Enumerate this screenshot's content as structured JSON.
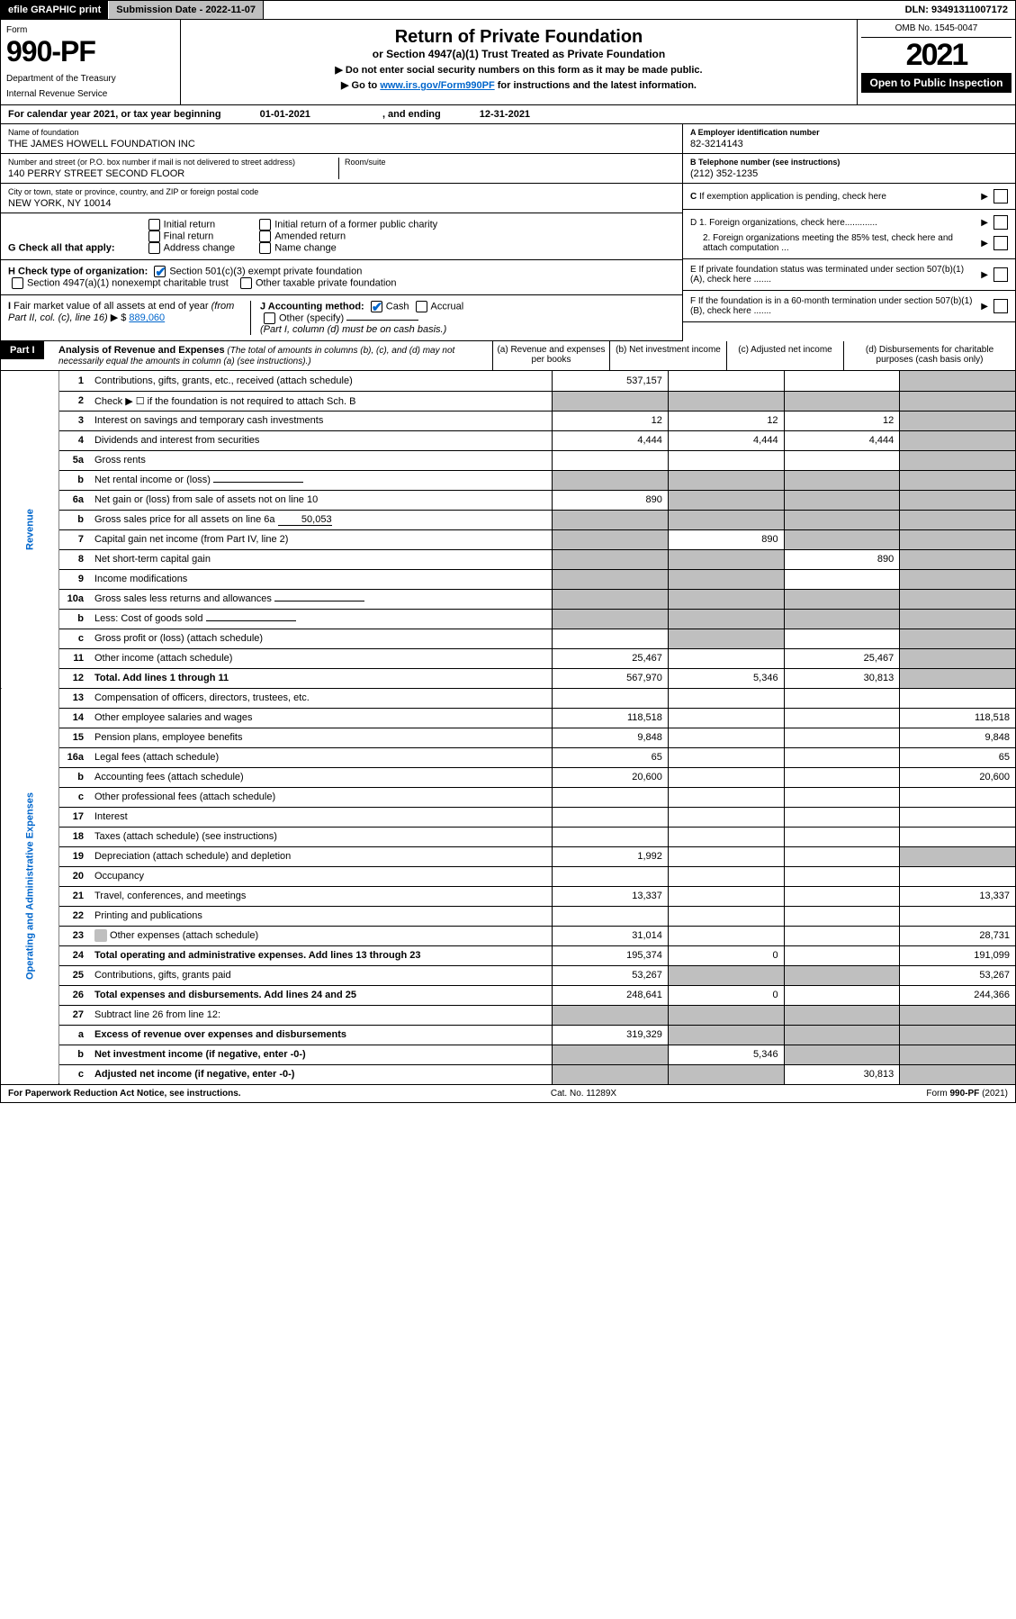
{
  "topbar": {
    "efile": "efile GRAPHIC print",
    "submission_label": "Submission Date - 2022-11-07",
    "dln": "DLN: 93491311007172"
  },
  "header": {
    "form_label": "Form",
    "form_number": "990-PF",
    "dept": "Department of the Treasury",
    "irs": "Internal Revenue Service",
    "title": "Return of Private Foundation",
    "subtitle": "or Section 4947(a)(1) Trust Treated as Private Foundation",
    "instr1": "▶ Do not enter social security numbers on this form as it may be made public.",
    "instr2_a": "▶ Go to ",
    "instr2_link": "www.irs.gov/Form990PF",
    "instr2_b": " for instructions and the latest information.",
    "omb": "OMB No. 1545-0047",
    "tax_year": "2021",
    "open_public": "Open to Public Inspection"
  },
  "calendar": {
    "prefix": "For calendar year 2021, or tax year beginning ",
    "begin": "01-01-2021",
    "mid": ", and ending ",
    "end": "12-31-2021"
  },
  "foundation": {
    "name_label": "Name of foundation",
    "name": "THE JAMES HOWELL FOUNDATION INC",
    "addr_label": "Number and street (or P.O. box number if mail is not delivered to street address)",
    "addr": "140 PERRY STREET SECOND FLOOR",
    "room_label": "Room/suite",
    "city_label": "City or town, state or province, country, and ZIP or foreign postal code",
    "city": "NEW YORK, NY  10014"
  },
  "idblock": {
    "a_label": "A Employer identification number",
    "a_value": "82-3214143",
    "b_label": "B Telephone number (see instructions)",
    "b_value": "(212) 352-1235",
    "c_label": "C If exemption application is pending, check here",
    "d1_label": "D 1. Foreign organizations, check here.............",
    "d2_label": "2. Foreign organizations meeting the 85% test, check here and attach computation ...",
    "e_label": "E If private foundation status was terminated under section 507(b)(1)(A), check here .......",
    "f_label": "F If the foundation is in a 60-month termination under section 507(b)(1)(B), check here ......."
  },
  "g": {
    "label": "G Check all that apply:",
    "opts": [
      "Initial return",
      "Final return",
      "Address change",
      "Initial return of a former public charity",
      "Amended return",
      "Name change"
    ]
  },
  "h": {
    "label": "H Check type of organization:",
    "opt1": "Section 501(c)(3) exempt private foundation",
    "opt2": "Section 4947(a)(1) nonexempt charitable trust",
    "opt3": "Other taxable private foundation"
  },
  "i": {
    "label": "I Fair market value of all assets at end of year (from Part II, col. (c), line 16) ▶ $ ",
    "value": "889,060"
  },
  "j": {
    "label": "J Accounting method:",
    "cash": "Cash",
    "accrual": "Accrual",
    "other": "Other (specify)",
    "note": "(Part I, column (d) must be on cash basis.)"
  },
  "part1": {
    "header": "Part I",
    "title": "Analysis of Revenue and Expenses",
    "title_note": " (The total of amounts in columns (b), (c), and (d) may not necessarily equal the amounts in column (a) (see instructions).)",
    "col_a": "(a) Revenue and expenses per books",
    "col_b": "(b) Net investment income",
    "col_c": "(c) Adjusted net income",
    "col_d": "(d) Disbursements for charitable purposes (cash basis only)"
  },
  "side_labels": {
    "revenue": "Revenue",
    "expenses": "Operating and Administrative Expenses"
  },
  "rows": [
    {
      "n": "1",
      "desc": "Contributions, gifts, grants, etc., received (attach schedule)",
      "a": "537,157",
      "b": "",
      "c": "",
      "d": "",
      "d_shaded": true
    },
    {
      "n": "2",
      "desc": "Check ▶ ☐ if the foundation is not required to attach Sch. B",
      "a": "",
      "b": "",
      "c": "",
      "d": "",
      "all_shaded": true,
      "bold_not": true
    },
    {
      "n": "3",
      "desc": "Interest on savings and temporary cash investments",
      "a": "12",
      "b": "12",
      "c": "12",
      "d": "",
      "d_shaded": true
    },
    {
      "n": "4",
      "desc": "Dividends and interest from securities",
      "a": "4,444",
      "b": "4,444",
      "c": "4,444",
      "d": "",
      "d_shaded": true
    },
    {
      "n": "5a",
      "desc": "Gross rents",
      "a": "",
      "b": "",
      "c": "",
      "d": "",
      "d_shaded": true
    },
    {
      "n": "b",
      "desc": "Net rental income or (loss)",
      "inline_box": true,
      "a": "",
      "b": "",
      "c": "",
      "d": "",
      "abcd_shaded": true
    },
    {
      "n": "6a",
      "desc": "Net gain or (loss) from sale of assets not on line 10",
      "a": "890",
      "b": "",
      "c": "",
      "d": "",
      "bcd_shaded": true
    },
    {
      "n": "b",
      "desc": "Gross sales price for all assets on line 6a",
      "inline_val": "50,053",
      "a": "",
      "b": "",
      "c": "",
      "d": "",
      "abcd_shaded": true
    },
    {
      "n": "7",
      "desc": "Capital gain net income (from Part IV, line 2)",
      "a": "",
      "b": "890",
      "c": "",
      "d": "",
      "a_shaded": true,
      "cd_shaded": true
    },
    {
      "n": "8",
      "desc": "Net short-term capital gain",
      "a": "",
      "b": "",
      "c": "890",
      "d": "",
      "ab_shaded": true,
      "d_shaded": true
    },
    {
      "n": "9",
      "desc": "Income modifications",
      "a": "",
      "b": "",
      "c": "",
      "d": "",
      "ab_shaded": true,
      "d_shaded": true
    },
    {
      "n": "10a",
      "desc": "Gross sales less returns and allowances",
      "inline_box": true,
      "a": "",
      "b": "",
      "c": "",
      "d": "",
      "abcd_shaded": true
    },
    {
      "n": "b",
      "desc": "Less: Cost of goods sold",
      "inline_box": true,
      "a": "",
      "b": "",
      "c": "",
      "d": "",
      "abcd_shaded": true
    },
    {
      "n": "c",
      "desc": "Gross profit or (loss) (attach schedule)",
      "a": "",
      "b": "",
      "c": "",
      "d": "",
      "b_shaded": true,
      "d_shaded": true
    },
    {
      "n": "11",
      "desc": "Other income (attach schedule)",
      "a": "25,467",
      "b": "",
      "c": "25,467",
      "d": "",
      "d_shaded": true
    },
    {
      "n": "12",
      "desc": "Total. Add lines 1 through 11",
      "a": "567,970",
      "b": "5,346",
      "c": "30,813",
      "d": "",
      "d_shaded": true,
      "bold": true
    },
    {
      "n": "13",
      "desc": "Compensation of officers, directors, trustees, etc.",
      "a": "",
      "b": "",
      "c": "",
      "d": ""
    },
    {
      "n": "14",
      "desc": "Other employee salaries and wages",
      "a": "118,518",
      "b": "",
      "c": "",
      "d": "118,518"
    },
    {
      "n": "15",
      "desc": "Pension plans, employee benefits",
      "a": "9,848",
      "b": "",
      "c": "",
      "d": "9,848"
    },
    {
      "n": "16a",
      "desc": "Legal fees (attach schedule)",
      "a": "65",
      "b": "",
      "c": "",
      "d": "65"
    },
    {
      "n": "b",
      "desc": "Accounting fees (attach schedule)",
      "a": "20,600",
      "b": "",
      "c": "",
      "d": "20,600"
    },
    {
      "n": "c",
      "desc": "Other professional fees (attach schedule)",
      "a": "",
      "b": "",
      "c": "",
      "d": ""
    },
    {
      "n": "17",
      "desc": "Interest",
      "a": "",
      "b": "",
      "c": "",
      "d": ""
    },
    {
      "n": "18",
      "desc": "Taxes (attach schedule) (see instructions)",
      "a": "",
      "b": "",
      "c": "",
      "d": ""
    },
    {
      "n": "19",
      "desc": "Depreciation (attach schedule) and depletion",
      "a": "1,992",
      "b": "",
      "c": "",
      "d": "",
      "d_shaded": true
    },
    {
      "n": "20",
      "desc": "Occupancy",
      "a": "",
      "b": "",
      "c": "",
      "d": ""
    },
    {
      "n": "21",
      "desc": "Travel, conferences, and meetings",
      "a": "13,337",
      "b": "",
      "c": "",
      "d": "13,337"
    },
    {
      "n": "22",
      "desc": "Printing and publications",
      "a": "",
      "b": "",
      "c": "",
      "d": ""
    },
    {
      "n": "23",
      "desc": "Other expenses (attach schedule)",
      "a": "31,014",
      "b": "",
      "c": "",
      "d": "28,731",
      "attach_icon": true
    },
    {
      "n": "24",
      "desc": "Total operating and administrative expenses. Add lines 13 through 23",
      "a": "195,374",
      "b": "0",
      "c": "",
      "d": "191,099",
      "bold": true
    },
    {
      "n": "25",
      "desc": "Contributions, gifts, grants paid",
      "a": "53,267",
      "b": "",
      "c": "",
      "d": "53,267",
      "b_shaded": true,
      "c_shaded": true
    },
    {
      "n": "26",
      "desc": "Total expenses and disbursements. Add lines 24 and 25",
      "a": "248,641",
      "b": "0",
      "c": "",
      "d": "244,366",
      "bold": true
    },
    {
      "n": "27",
      "desc": "Subtract line 26 from line 12:",
      "a": "",
      "b": "",
      "c": "",
      "d": "",
      "abcd_shaded": true
    },
    {
      "n": "a",
      "desc": "Excess of revenue over expenses and disbursements",
      "a": "319,329",
      "b": "",
      "c": "",
      "d": "",
      "bcd_shaded": true,
      "bold": true
    },
    {
      "n": "b",
      "desc": "Net investment income (if negative, enter -0-)",
      "a": "",
      "b": "5,346",
      "c": "",
      "d": "",
      "a_shaded": true,
      "cd_shaded": true,
      "bold": true
    },
    {
      "n": "c",
      "desc": "Adjusted net income (if negative, enter -0-)",
      "a": "",
      "b": "",
      "c": "30,813",
      "d": "",
      "ab_shaded": true,
      "d_shaded": true,
      "bold": true
    }
  ],
  "footer": {
    "left": "For Paperwork Reduction Act Notice, see instructions.",
    "mid": "Cat. No. 11289X",
    "right": "Form 990-PF (2021)"
  },
  "colors": {
    "shaded": "#bfbfbf",
    "link": "#0066cc"
  }
}
